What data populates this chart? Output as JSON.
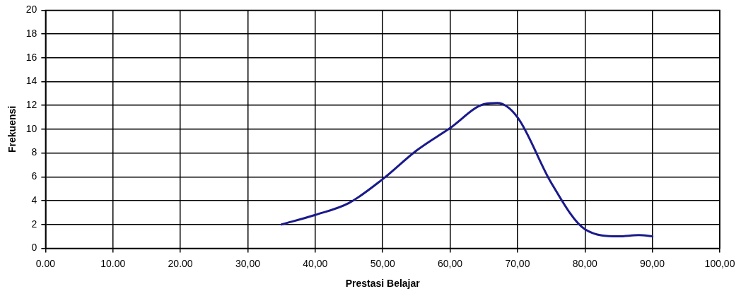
{
  "chart_data": {
    "type": "line",
    "xlabel": "Prestasi Belajar",
    "ylabel": "Frekuensi",
    "x": [
      35,
      40,
      45,
      50,
      55,
      60,
      65,
      67,
      70,
      75,
      80,
      85,
      88,
      90
    ],
    "series": [
      {
        "color": "#1a1a8c",
        "values": [
          2.0,
          2.8,
          3.8,
          5.8,
          8.2,
          10.1,
          12.1,
          12.2,
          11.0,
          5.5,
          1.6,
          1.0,
          1.1,
          1.0
        ]
      }
    ],
    "xlim": [
      0,
      100
    ],
    "xticks": [
      {
        "value": 0,
        "label": "0.00"
      },
      {
        "value": 10,
        "label": "10.00"
      },
      {
        "value": 20,
        "label": "20.00"
      },
      {
        "value": 30,
        "label": "30,00"
      },
      {
        "value": 40,
        "label": "40,00"
      },
      {
        "value": 50,
        "label": "50,00"
      },
      {
        "value": 60,
        "label": "60,00"
      },
      {
        "value": 70,
        "label": "70,00"
      },
      {
        "value": 80,
        "label": "80,00"
      },
      {
        "value": 90,
        "label": "90,00"
      },
      {
        "value": 100,
        "label": "100,00"
      }
    ],
    "ylim": [
      0,
      20
    ],
    "yticks": [
      0,
      2,
      4,
      6,
      8,
      10,
      12,
      14,
      16,
      18,
      20
    ],
    "grid": true,
    "marker": "none",
    "line_style": "solid",
    "legend": false
  }
}
